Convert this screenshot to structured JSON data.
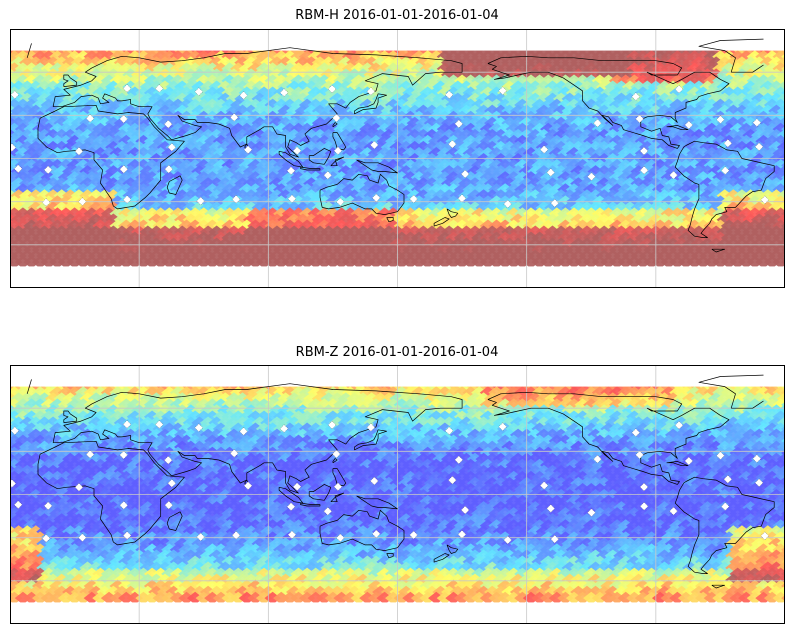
{
  "panels": [
    {
      "title": "RBM-H 2016-01-01-2016-01-04",
      "field": "H",
      "colormap": [
        "#5f5fff",
        "#63e6ff",
        "#ffff66",
        "#ff5a5a",
        "#b06060"
      ]
    },
    {
      "title": "RBM-Z 2016-01-01-2016-01-04",
      "field": "Z",
      "colormap": [
        "#5f5fff",
        "#63e6ff",
        "#ffff66",
        "#ff5a5a",
        "#b06060"
      ]
    }
  ],
  "map": {
    "projection": "PlateCarree",
    "central_longitude": 150,
    "extent": [
      -30,
      330,
      -90,
      90
    ],
    "data_lat_range": [
      -75,
      75
    ],
    "gridlines": true,
    "coastlines": true,
    "observation_markers": "white diamond station markers"
  }
}
